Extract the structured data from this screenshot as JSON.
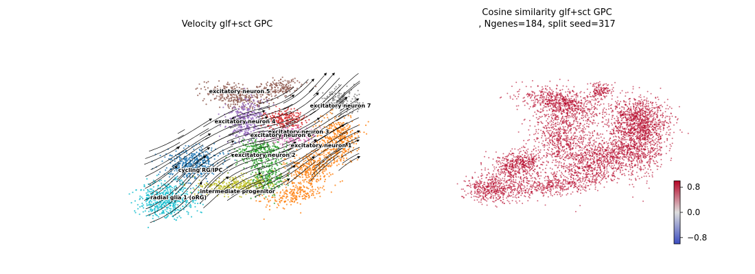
{
  "chart_data": [
    {
      "type": "scatter",
      "subtype": "umap-velocity-streamplot",
      "title": "Velocity glf+sct GPC",
      "axes_visible": false,
      "grid": false,
      "legend": "on-data",
      "clusters": [
        {
          "name": "excitatory neuron 5",
          "color": "#8c564b"
        },
        {
          "name": "excitatory neuron 7",
          "color": "#7f7f7f"
        },
        {
          "name": "excitatory neuron 4",
          "color": "#9467bd"
        },
        {
          "name": "excitatory neuron 3",
          "color": "#d62728"
        },
        {
          "name": "excitatory neuron 6",
          "color": "#e377c2"
        },
        {
          "name": "excitatory neuron 1",
          "color": "#ff7f0e"
        },
        {
          "name": "excitatory neuron 2",
          "color": "#2ca02c"
        },
        {
          "name": "cycling RG/IPC",
          "color": "#1f77b4"
        },
        {
          "name": "intermediate progenitor",
          "color": "#bcbd22"
        },
        {
          "name": "radial glia 1 (oRG)",
          "color": "#17becf"
        }
      ]
    },
    {
      "type": "scatter",
      "subtype": "umap-colored-by-value",
      "title_lines": [
        "Cosine similarity glf+sct GPC",
        ", Ngenes=184, split seed=317"
      ],
      "axes_visible": false,
      "grid": false,
      "point_color": "#b40426",
      "colorbar": {
        "cmap": "coolwarm",
        "range": [
          -1,
          1
        ],
        "ticks": [
          0.8,
          0.0,
          -0.8
        ],
        "tick_labels": [
          "0.8",
          "0.0",
          "−0.8"
        ],
        "colors": [
          "#b40426",
          "#dddddd",
          "#3b4cc0"
        ],
        "placement": "right"
      }
    }
  ]
}
